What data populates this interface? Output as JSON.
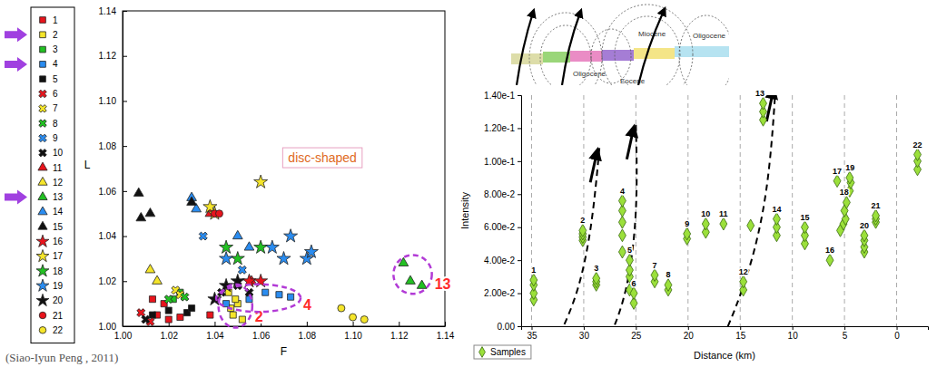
{
  "source": "(Siao-Iyun Peng , 2011)",
  "cross_section": {
    "labels": [
      "Miocene",
      "Oligocene",
      "Oligocene",
      "Eocene"
    ]
  },
  "chart_data": [
    {
      "type": "scatter",
      "x_label": "F",
      "y_label": "L",
      "xlim": [
        1.0,
        1.14
      ],
      "ylim": [
        1.0,
        1.14
      ],
      "xticks": [
        {
          "value": 1.0,
          "label": "1.00"
        },
        {
          "value": 1.02,
          "label": "1.02"
        },
        {
          "value": 1.04,
          "label": "1.04"
        },
        {
          "value": 1.06,
          "label": "1.06"
        },
        {
          "value": 1.08,
          "label": "1.08"
        },
        {
          "value": 1.1,
          "label": "1.10"
        },
        {
          "value": 1.12,
          "label": "1.12"
        },
        {
          "value": 1.14,
          "label": "1.14"
        }
      ],
      "yticks": [
        {
          "value": 1.0,
          "label": "1.00"
        },
        {
          "value": 1.02,
          "label": "1.02"
        },
        {
          "value": 1.04,
          "label": "1.04"
        },
        {
          "value": 1.06,
          "label": "1.06"
        },
        {
          "value": 1.08,
          "label": "1.08"
        },
        {
          "value": 1.1,
          "label": "1.10"
        },
        {
          "value": 1.12,
          "label": "1.12"
        },
        {
          "value": 1.14,
          "label": "1.14"
        }
      ],
      "grid": false,
      "legend": "left",
      "annotations": [
        {
          "text": "disc-shaped"
        },
        {
          "text": "2"
        },
        {
          "text": "4"
        },
        {
          "text": "13"
        }
      ],
      "series": [
        {
          "name": "1",
          "color": "#e8141c",
          "marker": "square",
          "x": [
            1.015,
            1.02,
            1.025,
            1.018,
            1.013,
            1.038
          ],
          "values": [
            1.005,
            1.003,
            1.004,
            1.01,
            1.012,
            1.005
          ]
        },
        {
          "name": "2",
          "color": "#f5e52a",
          "marker": "square",
          "x": [
            1.047,
            1.048,
            1.05,
            1.052,
            1.049,
            1.046
          ],
          "values": [
            1.008,
            1.005,
            1.01,
            1.003,
            1.012,
            1.015
          ]
        },
        {
          "name": "3",
          "color": "#22c022",
          "marker": "square",
          "x": [
            1.022,
            1.025
          ],
          "values": [
            1.012,
            1.015
          ]
        },
        {
          "name": "4",
          "color": "#2a8cf0",
          "marker": "square",
          "x": [
            1.045,
            1.055,
            1.062,
            1.068,
            1.073
          ],
          "values": [
            1.01,
            1.012,
            1.015,
            1.014,
            1.013
          ]
        },
        {
          "name": "5",
          "color": "#111111",
          "marker": "square",
          "x": [
            1.013,
            1.02,
            1.028,
            1.03
          ],
          "values": [
            1.005,
            1.007,
            1.006,
            1.008
          ]
        },
        {
          "name": "6",
          "color": "#e8141c",
          "marker": "x",
          "x": [
            1.008,
            1.012
          ],
          "values": [
            1.006,
            1.002
          ]
        },
        {
          "name": "7",
          "color": "#f5e52a",
          "marker": "x",
          "x": [
            1.023,
            1.025
          ],
          "values": [
            1.016,
            1.014
          ]
        },
        {
          "name": "8",
          "color": "#22c022",
          "marker": "x",
          "x": [
            1.02,
            1.027
          ],
          "values": [
            1.012,
            1.013
          ]
        },
        {
          "name": "9",
          "color": "#2a8cf0",
          "marker": "x",
          "x": [
            1.035,
            1.052
          ],
          "values": [
            1.04,
            1.025
          ]
        },
        {
          "name": "10",
          "color": "#111111",
          "marker": "x",
          "x": [
            1.01,
            1.043,
            1.05,
            1.055
          ],
          "values": [
            1.003,
            1.015,
            1.018,
            1.015
          ]
        },
        {
          "name": "11",
          "color": "#e8141c",
          "marker": "triangle",
          "x": [
            1.038,
            1.056
          ],
          "values": [
            1.05,
            1.02
          ]
        },
        {
          "name": "12",
          "color": "#f5e52a",
          "marker": "triangle",
          "x": [
            1.012,
            1.015
          ],
          "values": [
            1.025,
            1.02
          ]
        },
        {
          "name": "13",
          "color": "#22c022",
          "marker": "triangle",
          "x": [
            1.122,
            1.125,
            1.13
          ],
          "values": [
            1.028,
            1.02,
            1.018
          ]
        },
        {
          "name": "14",
          "color": "#2a8cf0",
          "marker": "triangle",
          "x": [
            1.03,
            1.032,
            1.05,
            1.055
          ],
          "values": [
            1.057,
            1.052,
            1.04,
            1.035
          ]
        },
        {
          "name": "15",
          "color": "#111111",
          "marker": "triangle",
          "x": [
            1.007,
            1.008,
            1.012,
            1.03
          ],
          "values": [
            1.059,
            1.048,
            1.05,
            1.055
          ]
        },
        {
          "name": "16",
          "color": "#e8141c",
          "marker": "star",
          "x": [
            1.055,
            1.06
          ],
          "values": [
            1.02,
            1.02
          ]
        },
        {
          "name": "17",
          "color": "#f5e52a",
          "marker": "star",
          "x": [
            1.038,
            1.04,
            1.06
          ],
          "values": [
            1.053,
            1.05,
            1.064
          ]
        },
        {
          "name": "18",
          "color": "#22c022",
          "marker": "star",
          "x": [
            1.045,
            1.05,
            1.06
          ],
          "values": [
            1.035,
            1.03,
            1.035
          ]
        },
        {
          "name": "19",
          "color": "#2a8cf0",
          "marker": "star",
          "x": [
            1.045,
            1.065,
            1.07,
            1.073,
            1.08,
            1.082
          ],
          "values": [
            1.03,
            1.035,
            1.03,
            1.04,
            1.03,
            1.033
          ]
        },
        {
          "name": "20",
          "color": "#111111",
          "marker": "star",
          "x": [
            1.04,
            1.045,
            1.05
          ],
          "values": [
            1.012,
            1.018,
            1.02
          ]
        },
        {
          "name": "21",
          "color": "#e8141c",
          "marker": "circle",
          "x": [
            1.04,
            1.042
          ],
          "values": [
            1.05,
            1.05
          ]
        },
        {
          "name": "22",
          "color": "#f5e52a",
          "marker": "circle",
          "x": [
            1.095,
            1.1,
            1.105
          ],
          "values": [
            1.008,
            1.004,
            1.003
          ]
        }
      ]
    },
    {
      "type": "scatter",
      "x_label": "Distance (km)",
      "y_label": "Intensity",
      "xlim": [
        36,
        -3
      ],
      "ylim": [
        0,
        0.14
      ],
      "xticks": [
        35,
        30,
        25,
        20,
        15,
        10,
        5,
        0
      ],
      "yticks": [
        {
          "value": 0,
          "label": "0.00"
        },
        {
          "value": 0.02,
          "label": "2.00e-2"
        },
        {
          "value": 0.04,
          "label": "4.00e-2"
        },
        {
          "value": 0.06,
          "label": "6.00e-2"
        },
        {
          "value": 0.08,
          "label": "8.00e-2"
        },
        {
          "value": 0.1,
          "label": "1.00e-1"
        },
        {
          "value": 0.12,
          "label": "1.20e-1"
        },
        {
          "value": 0.14,
          "label": "1.40e-1"
        }
      ],
      "grid": "x",
      "legend": "bottom-left",
      "series": [
        {
          "name": "Samples",
          "color": "#9be03b",
          "marker": "diamond",
          "labels": [
            "1",
            "1",
            "1",
            "1",
            "2",
            "2",
            "2",
            "2",
            "3",
            "3",
            "3",
            "4",
            "4",
            "4",
            "4",
            "4",
            "5",
            "5",
            "5",
            "5",
            "6",
            "6",
            "7",
            "7",
            "8",
            "8",
            "9",
            "9",
            "10",
            "10",
            "11",
            "12",
            "12",
            "13",
            "13",
            "13",
            "13",
            "14",
            "14",
            "14",
            "15",
            "15",
            "15",
            "16",
            "17",
            "18",
            "18",
            "18",
            "18",
            "18",
            "19",
            "19",
            "19",
            "20",
            "20",
            "20",
            "20",
            "21",
            "21",
            "21",
            "22",
            "22",
            "22"
          ],
          "x": [
            34.8,
            34.8,
            34.8,
            34.8,
            30.1,
            30.1,
            30.1,
            30.1,
            28.8,
            28.8,
            28.8,
            26.3,
            26.3,
            26.3,
            26.3,
            26.3,
            25.6,
            25.6,
            25.6,
            25.6,
            25.2,
            25.2,
            23.2,
            23.2,
            21.9,
            21.9,
            20.1,
            20.1,
            18.3,
            18.3,
            16.6,
            14.7,
            14.7,
            14.0,
            12.8,
            12.8,
            12.8,
            11.5,
            11.5,
            11.5,
            8.8,
            8.8,
            8.8,
            6.4,
            5.7,
            5.4,
            5.1,
            4.9,
            5.0,
            4.8,
            4.5,
            4.4,
            4.5,
            3.1,
            3.1,
            3.1,
            3.1,
            2.0,
            2.0,
            2.0,
            -2.0,
            -2.0,
            -2.0
          ],
          "values": [
            0.016,
            0.02,
            0.025,
            0.028,
            0.052,
            0.054,
            0.056,
            0.058,
            0.025,
            0.027,
            0.029,
            0.045,
            0.055,
            0.063,
            0.07,
            0.076,
            0.022,
            0.03,
            0.034,
            0.04,
            0.014,
            0.02,
            0.027,
            0.031,
            0.022,
            0.025,
            0.053,
            0.056,
            0.057,
            0.062,
            0.062,
            0.022,
            0.027,
            0.061,
            0.125,
            0.13,
            0.135,
            0.055,
            0.06,
            0.065,
            0.05,
            0.055,
            0.06,
            0.04,
            0.088,
            0.058,
            0.062,
            0.065,
            0.07,
            0.075,
            0.082,
            0.087,
            0.09,
            0.045,
            0.048,
            0.052,
            0.055,
            0.063,
            0.065,
            0.067,
            0.095,
            0.1,
            0.104
          ]
        }
      ]
    }
  ]
}
